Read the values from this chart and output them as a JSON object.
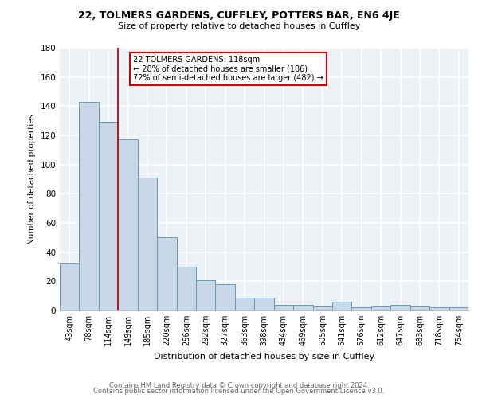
{
  "title1": "22, TOLMERS GARDENS, CUFFLEY, POTTERS BAR, EN6 4JE",
  "title2": "Size of property relative to detached houses in Cuffley",
  "xlabel": "Distribution of detached houses by size in Cuffley",
  "ylabel": "Number of detached properties",
  "bin_labels": [
    "43sqm",
    "78sqm",
    "114sqm",
    "149sqm",
    "185sqm",
    "220sqm",
    "256sqm",
    "292sqm",
    "327sqm",
    "363sqm",
    "398sqm",
    "434sqm",
    "469sqm",
    "505sqm",
    "541sqm",
    "576sqm",
    "612sqm",
    "647sqm",
    "683sqm",
    "718sqm",
    "754sqm"
  ],
  "bar_heights": [
    32,
    143,
    129,
    117,
    91,
    50,
    30,
    21,
    18,
    9,
    9,
    4,
    4,
    3,
    6,
    2,
    3,
    4,
    3,
    2,
    2
  ],
  "bar_color": "#c8d8e8",
  "bar_edge_color": "#6699bb",
  "ylim": [
    0,
    180
  ],
  "yticks": [
    0,
    20,
    40,
    60,
    80,
    100,
    120,
    140,
    160,
    180
  ],
  "property_bin_index": 2,
  "annotation_title": "22 TOLMERS GARDENS: 118sqm",
  "annotation_line1": "← 28% of detached houses are smaller (186)",
  "annotation_line2": "72% of semi-detached houses are larger (482) →",
  "annotation_box_color": "#ffffff",
  "annotation_box_edge": "#cc0000",
  "vline_color": "#cc0000",
  "footer1": "Contains HM Land Registry data © Crown copyright and database right 2024.",
  "footer2": "Contains public sector information licensed under the Open Government Licence v3.0.",
  "bg_color": "#edf2f7",
  "grid_color": "#ffffff"
}
